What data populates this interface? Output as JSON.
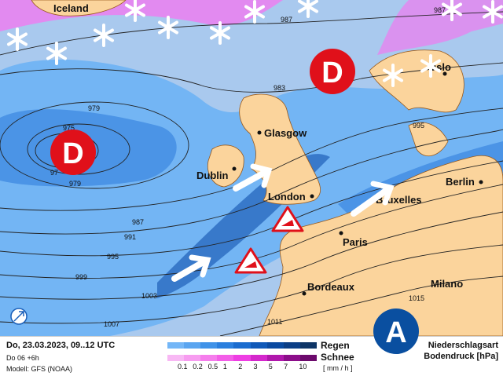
{
  "map": {
    "cities": [
      {
        "name": "Iceland"
      },
      {
        "name": "Oslo"
      },
      {
        "name": "Glasgow"
      },
      {
        "name": "Dublin"
      },
      {
        "name": "London"
      },
      {
        "name": "Bruxelles"
      },
      {
        "name": "Berlin"
      },
      {
        "name": "Paris"
      },
      {
        "name": "Bordeaux"
      },
      {
        "name": "Milano"
      }
    ],
    "isobars": [
      "987",
      "987",
      "983",
      "979",
      "975",
      "97",
      "979",
      "987",
      "991",
      "995",
      "999",
      "1003",
      "1007",
      "1011",
      "1015",
      "995"
    ],
    "low_label": "D",
    "high_label": "A",
    "colors": {
      "ocean": "#a9c9ee",
      "land": "#fbd49c",
      "rain_light": "#62aef5",
      "rain_mid": "#3a86e0",
      "rain_dark": "#1f5fb8",
      "snow": "#f07af0",
      "low": "#e0101a",
      "high": "#0a4fa0"
    }
  },
  "footer": {
    "datetime": "Do, 23.03.2023, 09..12 UTC",
    "run": "Do 06 +6h",
    "model": "Modell: GFS (NOAA)",
    "rain_label": "Regen",
    "snow_label": "Schnee",
    "unit": "[ mm / h ]",
    "ticks": [
      "0.1",
      "0.2",
      "0.5",
      "1",
      "2",
      "3",
      "5",
      "7",
      "10"
    ],
    "legend_title1": "Niederschlagsart",
    "legend_title2": "Bodendruck [hPa]",
    "rain_colors": [
      "#73b6f7",
      "#5aa5f0",
      "#3f92e8",
      "#2a7fde",
      "#1a6ccf",
      "#1059b8",
      "#0a4aa0",
      "#0c3f86",
      "#0e3566"
    ],
    "snow_colors": [
      "#f8b8f4",
      "#f79cf0",
      "#f57dec",
      "#f35ee8",
      "#ee3ee3",
      "#d428cc",
      "#b018ac",
      "#8c0e8a",
      "#6c0a6c"
    ]
  }
}
